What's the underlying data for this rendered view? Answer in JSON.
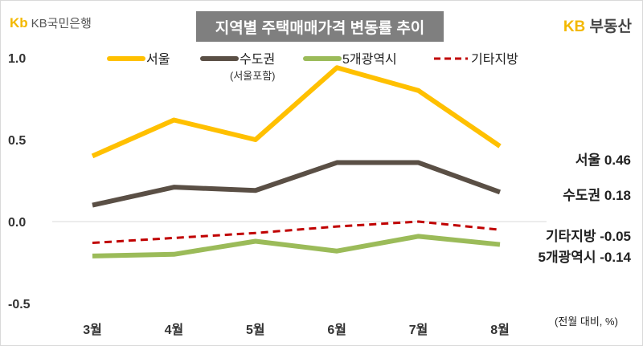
{
  "header": {
    "left_logo_mark": "Kb",
    "left_logo_text": "KB국민은행",
    "title": "지역별 주택매매가격 변동률 추이",
    "right_logo_kb": "KB",
    "right_logo_text": "부동산"
  },
  "chart_data": {
    "type": "line",
    "title": "지역별 주택매매가격 변동률 추이",
    "categories": [
      "3월",
      "4월",
      "5월",
      "6월",
      "7월",
      "8월"
    ],
    "yticks": [
      "1.0",
      "0.5",
      "0.0",
      "-0.5"
    ],
    "ylim": [
      -0.5,
      1.0
    ],
    "unit_note": "(전월 대비, %)",
    "legend_placement": "top",
    "series": [
      {
        "name": "서울",
        "sub": "",
        "color": "#ffc000",
        "dash": false,
        "values": [
          0.4,
          0.62,
          0.5,
          0.94,
          0.8,
          0.46
        ],
        "end_label": "서울 0.46"
      },
      {
        "name": "수도권",
        "sub": "(서울포함)",
        "color": "#5a4f45",
        "dash": false,
        "values": [
          0.1,
          0.21,
          0.19,
          0.36,
          0.36,
          0.18
        ],
        "end_label": "수도권 0.18"
      },
      {
        "name": "5개광역시",
        "sub": "",
        "color": "#9bbb59",
        "dash": false,
        "values": [
          -0.21,
          -0.2,
          -0.12,
          -0.18,
          -0.09,
          -0.14
        ],
        "end_label": "5개광역시 -0.14"
      },
      {
        "name": "기타지방",
        "sub": "",
        "color": "#c00000",
        "dash": true,
        "values": [
          -0.13,
          -0.1,
          -0.07,
          -0.03,
          0.0,
          -0.05
        ],
        "end_label": "기타지방 -0.05"
      }
    ]
  }
}
